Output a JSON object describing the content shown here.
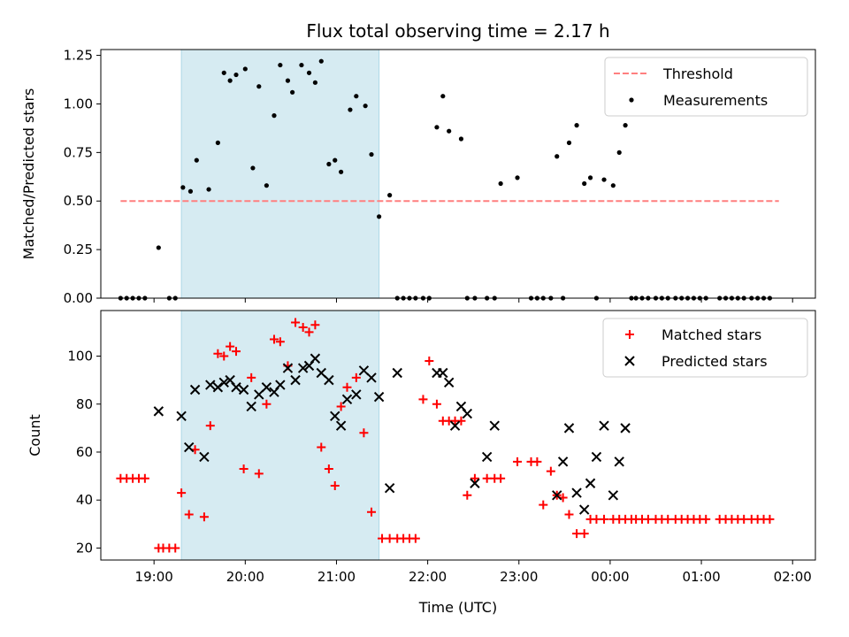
{
  "chart_data": [
    {
      "type": "scatter",
      "title": "Flux total observing time = 2.17 h",
      "xlabel": "",
      "ylabel": "Matched/Predicted stars",
      "ylim": [
        0,
        1.28
      ],
      "yticks": [
        0.0,
        0.25,
        0.5,
        0.75,
        1.0,
        1.25
      ],
      "ytick_labels": [
        "0.00",
        "0.25",
        "0.50",
        "0.75",
        "1.00",
        "1.25"
      ],
      "xlim": [
        "18:25",
        "02:15"
      ],
      "highlight_span": [
        "19:18",
        "21:28"
      ],
      "legend": {
        "placement": "top-right",
        "entries": [
          "Threshold",
          "Measurements"
        ]
      },
      "series": [
        {
          "name": "Threshold",
          "kind": "dashed-line",
          "color": "#ff7f7f",
          "x": [
            "18:38",
            "01:51"
          ],
          "y": [
            0.5,
            0.5
          ]
        },
        {
          "name": "Measurements",
          "kind": "dot",
          "color": "#000000",
          "x": [
            "18:38",
            "18:42",
            "18:46",
            "18:50",
            "18:54",
            "19:03",
            "19:10",
            "19:14",
            "19:19",
            "19:24",
            "19:28",
            "19:36",
            "19:42",
            "19:46",
            "19:50",
            "19:54",
            "20:00",
            "20:05",
            "20:09",
            "20:14",
            "20:19",
            "20:23",
            "20:28",
            "20:31",
            "20:37",
            "20:42",
            "20:46",
            "20:50",
            "20:55",
            "20:59",
            "21:03",
            "21:09",
            "21:13",
            "21:19",
            "21:23",
            "21:28",
            "21:35",
            "21:40",
            "21:44",
            "21:48",
            "21:52",
            "21:57",
            "22:01",
            "22:06",
            "22:10",
            "22:14",
            "22:22",
            "22:26",
            "22:31",
            "22:39",
            "22:44",
            "22:48",
            "22:59",
            "23:08",
            "23:12",
            "23:16",
            "23:21",
            "23:25",
            "23:29",
            "23:33",
            "23:38",
            "23:43",
            "23:47",
            "23:51",
            "23:56",
            "00:02",
            "00:06",
            "00:10",
            "00:14",
            "00:17",
            "00:21",
            "00:25",
            "00:30",
            "00:34",
            "00:38",
            "00:43",
            "00:47",
            "00:51",
            "00:55",
            "00:59",
            "01:03",
            "01:12",
            "01:16",
            "01:20",
            "01:24",
            "01:28",
            "01:33",
            "01:37",
            "01:41",
            "01:45"
          ],
          "y": [
            0.0,
            0.0,
            0.0,
            0.0,
            0.0,
            0.26,
            0.0,
            0.0,
            0.57,
            0.55,
            0.71,
            0.56,
            0.8,
            1.16,
            1.12,
            1.15,
            1.18,
            0.67,
            1.09,
            0.58,
            0.94,
            1.2,
            1.12,
            1.06,
            1.2,
            1.16,
            1.11,
            1.22,
            0.69,
            0.71,
            0.65,
            0.97,
            1.04,
            0.99,
            0.74,
            0.42,
            0.53,
            0.0,
            0.0,
            0.0,
            0.0,
            0.0,
            0.0,
            0.88,
            1.04,
            0.86,
            0.82,
            0.0,
            0.0,
            0.0,
            0.0,
            0.59,
            0.62,
            0.0,
            0.0,
            0.0,
            0.0,
            0.73,
            0.0,
            0.8,
            0.89,
            0.59,
            0.62,
            0.0,
            0.61,
            0.58,
            0.75,
            0.89,
            0.0,
            0.0,
            0.0,
            0.0,
            0.0,
            0.0,
            0.0,
            0.0,
            0.0,
            0.0,
            0.0,
            0.0,
            0.0,
            0.0,
            0.0,
            0.0,
            0.0,
            0.0,
            0.0,
            0.0,
            0.0,
            0.0
          ]
        }
      ]
    },
    {
      "type": "scatter",
      "title": "",
      "xlabel": "Time (UTC)",
      "ylabel": "Count",
      "ylim": [
        15,
        119
      ],
      "yticks": [
        20,
        40,
        60,
        80,
        100
      ],
      "ytick_labels": [
        "20",
        "40",
        "60",
        "80",
        "100"
      ],
      "xlim": [
        "18:25",
        "02:15"
      ],
      "xticks": [
        "19:00",
        "20:00",
        "21:00",
        "22:00",
        "23:00",
        "00:00",
        "01:00",
        "02:00"
      ],
      "xtick_labels": [
        "19:00",
        "20:00",
        "21:00",
        "22:00",
        "23:00",
        "00:00",
        "01:00",
        "02:00"
      ],
      "highlight_span": [
        "19:18",
        "21:28"
      ],
      "legend": {
        "placement": "top-right",
        "entries": [
          "Matched stars",
          "Predicted stars"
        ]
      },
      "series": [
        {
          "name": "Matched stars",
          "kind": "plus",
          "color": "#ff0000",
          "x": [
            "18:38",
            "18:42",
            "18:46",
            "18:50",
            "18:54",
            "19:03",
            "19:06",
            "19:10",
            "19:14",
            "19:18",
            "19:23",
            "19:27",
            "19:33",
            "19:37",
            "19:42",
            "19:46",
            "19:50",
            "19:54",
            "19:59",
            "20:04",
            "20:09",
            "20:14",
            "20:19",
            "20:23",
            "20:28",
            "20:33",
            "20:38",
            "20:42",
            "20:46",
            "20:50",
            "20:55",
            "20:59",
            "21:03",
            "21:07",
            "21:13",
            "21:18",
            "21:23",
            "21:30",
            "21:35",
            "21:40",
            "21:44",
            "21:48",
            "21:52",
            "21:57",
            "22:01",
            "22:06",
            "22:10",
            "22:14",
            "22:18",
            "22:22",
            "22:26",
            "22:31",
            "22:39",
            "22:44",
            "22:48",
            "22:59",
            "23:08",
            "23:12",
            "23:16",
            "23:21",
            "23:25",
            "23:29",
            "23:33",
            "23:38",
            "23:43",
            "23:47",
            "23:51",
            "23:56",
            "00:02",
            "00:06",
            "00:10",
            "00:14",
            "00:17",
            "00:21",
            "00:25",
            "00:30",
            "00:34",
            "00:38",
            "00:43",
            "00:47",
            "00:51",
            "00:55",
            "00:59",
            "01:03",
            "01:12",
            "01:16",
            "01:20",
            "01:24",
            "01:28",
            "01:33",
            "01:37",
            "01:41",
            "01:45"
          ],
          "y": [
            49,
            49,
            49,
            49,
            49,
            20,
            20,
            20,
            20,
            43,
            34,
            61,
            33,
            71,
            101,
            100,
            104,
            102,
            53,
            91,
            51,
            80,
            107,
            106,
            96,
            114,
            112,
            110,
            113,
            62,
            53,
            46,
            79,
            87,
            91,
            68,
            35,
            24,
            24,
            24,
            24,
            24,
            24,
            82,
            98,
            80,
            73,
            73,
            73,
            73,
            42,
            49,
            49,
            49,
            49,
            56,
            56,
            56,
            38,
            52,
            42,
            41,
            34,
            26,
            26,
            32,
            32,
            32,
            32,
            32,
            32,
            32,
            32,
            32,
            32,
            32,
            32,
            32,
            32,
            32,
            32,
            32,
            32,
            32,
            32,
            32,
            32,
            32,
            32,
            32,
            32,
            32,
            32
          ]
        },
        {
          "name": "Predicted stars",
          "kind": "x",
          "color": "#000000",
          "x": [
            "19:03",
            "19:18",
            "19:23",
            "19:27",
            "19:33",
            "19:37",
            "19:42",
            "19:46",
            "19:50",
            "19:54",
            "19:59",
            "20:04",
            "20:09",
            "20:14",
            "20:19",
            "20:23",
            "20:28",
            "20:33",
            "20:38",
            "20:42",
            "20:46",
            "20:50",
            "20:55",
            "20:59",
            "21:03",
            "21:07",
            "21:13",
            "21:18",
            "21:23",
            "21:28",
            "21:35",
            "21:40",
            "22:06",
            "22:10",
            "22:14",
            "22:18",
            "22:22",
            "22:26",
            "22:31",
            "22:39",
            "22:44",
            "23:25",
            "23:29",
            "23:33",
            "23:38",
            "23:43",
            "23:47",
            "23:51",
            "23:56",
            "00:02",
            "00:06",
            "00:10"
          ],
          "y": [
            77,
            75,
            62,
            86,
            58,
            88,
            87,
            89,
            90,
            87,
            86,
            79,
            84,
            87,
            85,
            88,
            95,
            90,
            95,
            96,
            99,
            93,
            90,
            75,
            71,
            82,
            84,
            94,
            91,
            83,
            45,
            93,
            93,
            93,
            89,
            71,
            79,
            76,
            47,
            58,
            71,
            42,
            56,
            70,
            43,
            36,
            47,
            58,
            71,
            42,
            56,
            70
          ]
        }
      ]
    }
  ]
}
